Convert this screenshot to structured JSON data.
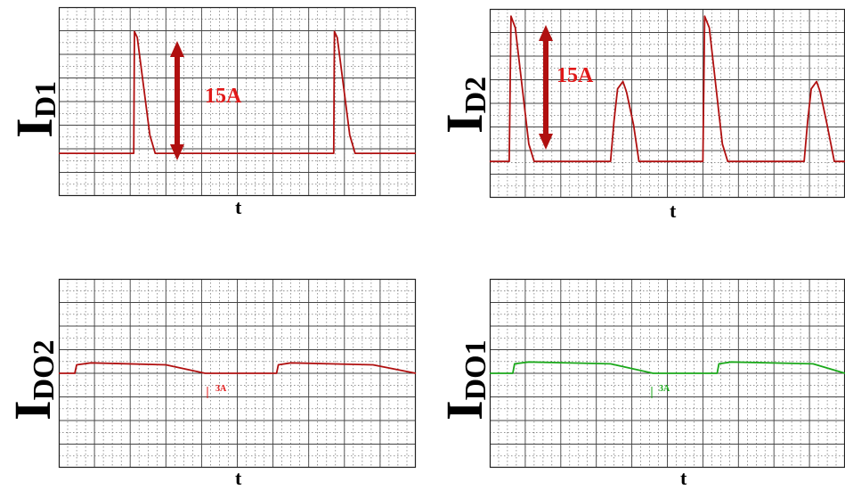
{
  "chart_data": [
    {
      "id": "id1",
      "type": "line",
      "ylabel_main": "I",
      "ylabel_sub": "D1",
      "xlabel": "t",
      "annotation": "15A",
      "color": "#b01010",
      "annotation_color": "#e01818",
      "arrow_color": "#b01010",
      "x_range": [
        0,
        10
      ],
      "y_range": [
        -0.35,
        1.2
      ],
      "series": [
        {
          "x": [
            0,
            2.1,
            2.12,
            2.2,
            2.55,
            2.7,
            7.7,
            7.72,
            7.8,
            8.15,
            8.3,
            10
          ],
          "y": [
            0,
            0,
            1.0,
            0.95,
            0.15,
            0,
            0,
            1.0,
            0.95,
            0.15,
            0,
            0
          ]
        }
      ]
    },
    {
      "id": "id2",
      "type": "line",
      "ylabel_main": "I",
      "ylabel_sub": "D2",
      "xlabel": "t",
      "annotation": "15A",
      "color": "#b01010",
      "annotation_color": "#e01818",
      "arrow_color": "#b01010",
      "x_range": [
        0,
        10
      ],
      "y_range": [
        -0.25,
        1.05
      ],
      "series": [
        {
          "x": [
            0,
            0.55,
            0.6,
            0.72,
            1.1,
            1.25,
            3.4,
            3.5,
            3.6,
            3.75,
            3.85,
            4.05,
            4.2,
            6.0,
            6.05,
            6.18,
            6.55,
            6.7,
            8.85,
            8.95,
            9.05,
            9.2,
            9.3,
            9.5,
            9.7,
            10
          ],
          "y": [
            0,
            0,
            1.0,
            0.92,
            0.12,
            0,
            0,
            0.28,
            0.5,
            0.55,
            0.48,
            0.25,
            0,
            0,
            1.0,
            0.92,
            0.12,
            0,
            0,
            0.28,
            0.5,
            0.55,
            0.48,
            0.25,
            0,
            0
          ]
        }
      ]
    },
    {
      "id": "ido2",
      "type": "line",
      "ylabel_main": "I",
      "ylabel_sub": "DO2",
      "xlabel": "t",
      "annotation": "3A",
      "color": "#b01010",
      "annotation_color": "#e01818",
      "x_range": [
        0,
        10
      ],
      "y_range": [
        -1,
        1
      ],
      "series": [
        {
          "x": [
            0,
            0.45,
            0.5,
            0.9,
            3.0,
            4.1,
            6.1,
            6.15,
            6.5,
            8.8,
            10
          ],
          "y": [
            0,
            0,
            0.09,
            0.11,
            0.09,
            0,
            0,
            0.09,
            0.11,
            0.09,
            0
          ]
        }
      ]
    },
    {
      "id": "ido1",
      "type": "line",
      "ylabel_main": "I",
      "ylabel_sub": "DO1",
      "xlabel": "t",
      "annotation": "3A",
      "color": "#1aa81a",
      "annotation_color": "#1aa81a",
      "x_range": [
        0,
        10
      ],
      "y_range": [
        -1,
        1
      ],
      "series": [
        {
          "x": [
            0,
            0.65,
            0.7,
            1.1,
            3.4,
            4.6,
            6.4,
            6.45,
            6.8,
            9.1,
            10
          ],
          "y": [
            0,
            0,
            0.1,
            0.12,
            0.1,
            0,
            0,
            0.1,
            0.12,
            0.1,
            0
          ]
        }
      ]
    }
  ]
}
